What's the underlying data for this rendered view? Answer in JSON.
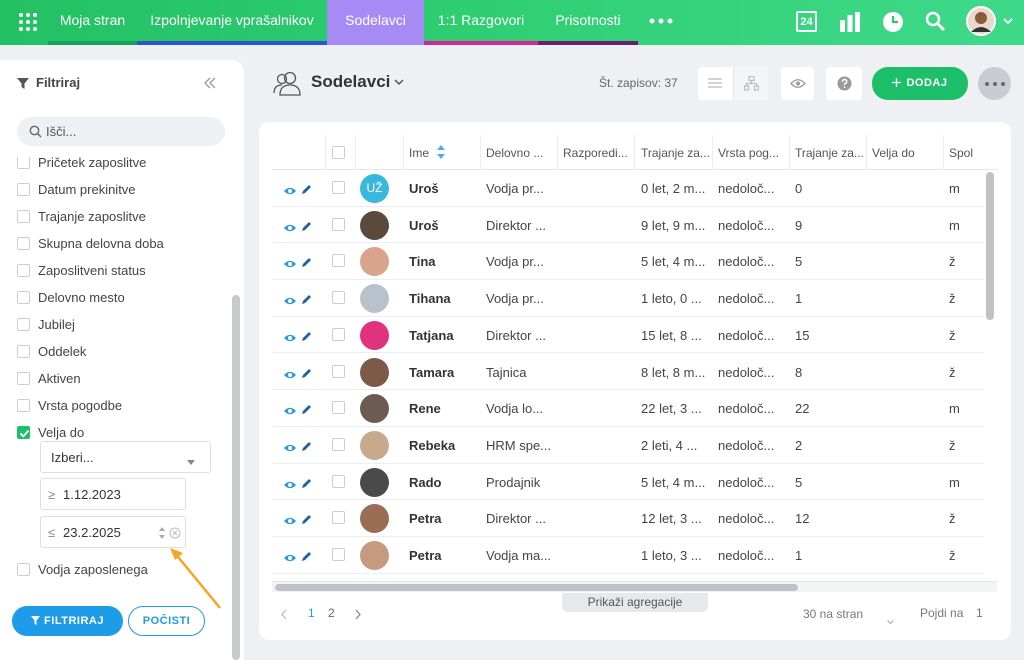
{
  "nav": {
    "items": [
      "Moja stran",
      "Izpolnjevanje vprašalnikov",
      "Sodelavci",
      "1:1 Razgovori",
      "Prisotnosti"
    ],
    "calendar_day": "24"
  },
  "sidebar": {
    "title": "Filtriraj",
    "search_placeholder": "Išči...",
    "filters": [
      {
        "label": "Pričetek zaposlitve"
      },
      {
        "label": "Datum prekinitve"
      },
      {
        "label": "Trajanje zaposlitve"
      },
      {
        "label": "Skupna delovna doba"
      },
      {
        "label": "Zaposlitveni status"
      },
      {
        "label": "Delovno mesto"
      },
      {
        "label": "Jubilej"
      },
      {
        "label": "Oddelek"
      },
      {
        "label": "Aktiven"
      },
      {
        "label": "Vrsta pogodbe"
      },
      {
        "label": "Velja do",
        "checked": true,
        "select": "Izberi...",
        "from_sign": "≥",
        "from": "1.12.2023",
        "to_sign": "≤",
        "to": "23.2.2025"
      },
      {
        "label": "Vodja zaposlenega"
      }
    ],
    "buttons": {
      "apply": "FILTRIRAJ",
      "clear": "POČISTI"
    }
  },
  "header": {
    "title": "Sodelavci",
    "record_count": "Št. zapisov: 37",
    "add_button": "DODAJ"
  },
  "table": {
    "columns": [
      "Ime",
      "Delovno ...",
      "Razporedi...",
      "Trajanje za...",
      "Vrsta pog...",
      "Trajanje za...",
      "Velja do",
      "Spol"
    ],
    "rows": [
      {
        "initials": "UŽ",
        "cells": [
          "Uroš",
          "Vodja pr...",
          null,
          "0 let, 2 m...",
          "nedoloč...",
          0,
          null,
          "m"
        ]
      },
      {
        "cells": [
          "Uroš",
          "Direktor ...",
          null,
          "9 let, 9 m...",
          "nedoloč...",
          9,
          null,
          "m"
        ]
      },
      {
        "cells": [
          "Tina",
          "Vodja pr...",
          null,
          "5 let, 4 m...",
          "nedoloč...",
          5,
          null,
          "ž"
        ]
      },
      {
        "cells": [
          "Tihana",
          "Vodja pr...",
          null,
          "1 leto, 0 ...",
          "nedoloč...",
          1,
          null,
          "ž"
        ]
      },
      {
        "cells": [
          "Tatjana",
          "Direktor ...",
          null,
          "15 let, 8 ...",
          "nedoloč...",
          15,
          null,
          "ž"
        ]
      },
      {
        "cells": [
          "Tamara",
          "Tajnica",
          null,
          "8 let, 8 m...",
          "nedoloč...",
          8,
          null,
          "ž"
        ]
      },
      {
        "cells": [
          "Rene",
          "Vodja lo...",
          null,
          "22 let, 3 ...",
          "nedoloč...",
          22,
          null,
          "m"
        ]
      },
      {
        "cells": [
          "Rebeka",
          "HRM spe...",
          null,
          "2 leti, 4 ...",
          "nedoloč...",
          2,
          null,
          "ž"
        ]
      },
      {
        "cells": [
          "Rado",
          "Prodajnik",
          null,
          "5 let, 4 m...",
          "nedoloč...",
          5,
          null,
          "m"
        ]
      },
      {
        "cells": [
          "Petra",
          "Direktor ...",
          null,
          "12 let, 3 ...",
          "nedoloč...",
          12,
          null,
          "ž"
        ]
      },
      {
        "cells": [
          "Petra",
          "Vodja ma...",
          null,
          "1 leto, 3 ...",
          "nedoloč...",
          1,
          null,
          "ž"
        ]
      }
    ]
  },
  "footer": {
    "pages": [
      1,
      2
    ],
    "aggregate": "Prikaži agregacije",
    "page_size": "30 na stran",
    "goto_label": "Pojdi na",
    "goto_value": 1
  }
}
